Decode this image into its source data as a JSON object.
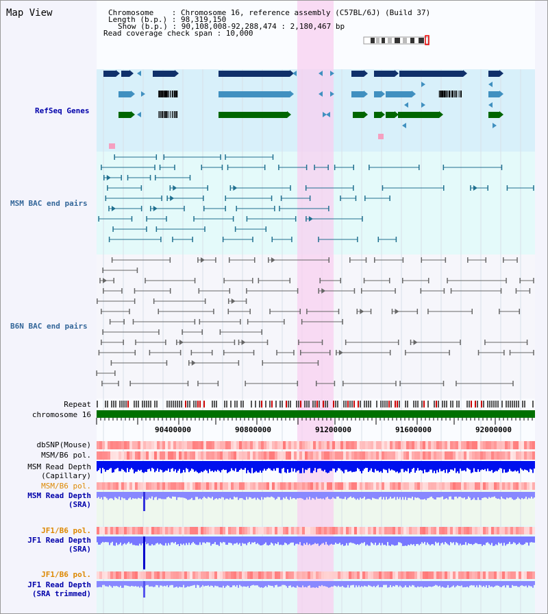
{
  "title": "Map View",
  "info": {
    "chromosome_line": "Chromosome    : Chromosome 16, reference assembly (C57BL/6J) (Build 37)",
    "length_line": "Length (b.p.) : 98,319,150",
    "show_line": "Show (b.p.) : 90,108,008-92,288,474 : 2,180,467 bp",
    "coverage_line": "Read coverage check span : 10,000"
  },
  "tracks": {
    "refseq": "RefSeq Genes",
    "msm_bac": "MSM BAC end pairs",
    "b6n_bac": "B6N BAC end pairs",
    "repeat": "Repeat",
    "chromosome": "chromosome 16",
    "dbsnp": "dbSNP(Mouse)",
    "msm_b6_pol": "MSM/B6 pol.",
    "msm_depth_cap_1": "MSM Read Depth",
    "msm_depth_cap_2": "(Capillary)",
    "msm_b6_pol_2": "MSM/B6 pol.",
    "msm_depth_sra_1": "MSM Read Depth",
    "msm_depth_sra_2": "(SRA)",
    "jf1_b6_pol": "JF1/B6 pol.",
    "jf1_depth_sra_1": "JF1 Read Depth",
    "jf1_depth_sra_2": "(SRA)",
    "jf1_b6_pol_2": "JF1/B6 pol.",
    "jf1_depth_trim_1": "JF1 Read Depth",
    "jf1_depth_trim_2": "(SRA trimmed)"
  },
  "axis_ticks": [
    "90400000",
    "90800000",
    "91200000",
    "91600000",
    "92000000"
  ],
  "colors": {
    "highlight": "#f8d0f0",
    "refseq_bg": "#d8f0fa",
    "bac_bg": "#e4fafa",
    "gene_dark": "#10306a",
    "gene_mid": "#4090c0",
    "gene_green": "#006600",
    "msm_bac": "#1f6f8f",
    "b6n_bac": "#666666",
    "chromosome": "#007000",
    "msm_label": "#0000aa",
    "b6n_label": "#336699",
    "orange_label": "#dd8800"
  }
}
